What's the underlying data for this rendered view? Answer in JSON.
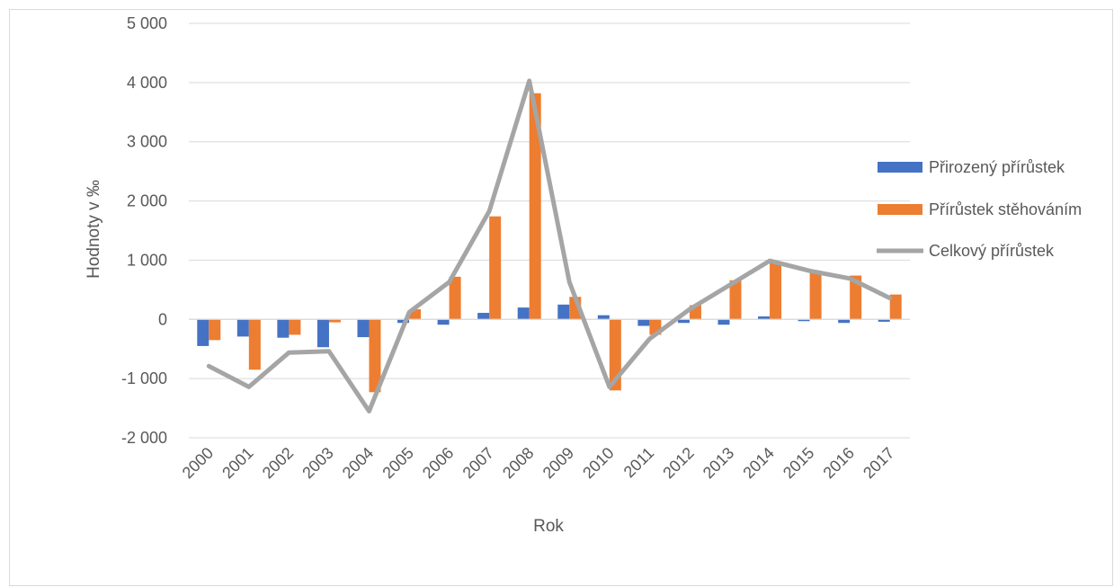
{
  "chart_data": {
    "type": "bar",
    "title": "",
    "xlabel": "Rok",
    "ylabel": "Hodnoty v ‰",
    "ylim": [
      -2000,
      5000
    ],
    "y_ticks": [
      5000,
      4000,
      3000,
      2000,
      1000,
      0,
      -1000,
      -2000
    ],
    "y_tick_labels": [
      "5 000",
      "4 000",
      "3 000",
      "2 000",
      "1 000",
      "0",
      "-1 000",
      "-2 000"
    ],
    "categories": [
      "2000",
      "2001",
      "2002",
      "2003",
      "2004",
      "2005",
      "2006",
      "2007",
      "2008",
      "2009",
      "2010",
      "2011",
      "2012",
      "2013",
      "2014",
      "2015",
      "2016",
      "2017"
    ],
    "grid": true,
    "legend_position": "right",
    "series": [
      {
        "name": "Přirozený přírůstek",
        "kind": "bar",
        "color": "#4472c4",
        "values": [
          -450,
          -290,
          -310,
          -470,
          -300,
          -60,
          -90,
          110,
          200,
          250,
          70,
          -110,
          -60,
          -90,
          50,
          -30,
          -60,
          -40
        ]
      },
      {
        "name": "Přírůstek stěhováním",
        "kind": "bar",
        "color": "#ed7d31",
        "values": [
          -350,
          -850,
          -260,
          -50,
          -1230,
          170,
          720,
          1740,
          3820,
          380,
          -1200,
          -260,
          240,
          660,
          960,
          820,
          740,
          420
        ]
      },
      {
        "name": "Celkový přírůstek",
        "kind": "line",
        "color": "#a5a5a5",
        "values": [
          -790,
          -1140,
          -560,
          -540,
          -1550,
          120,
          630,
          1830,
          4030,
          630,
          -1140,
          -330,
          170,
          580,
          990,
          820,
          690,
          360
        ]
      }
    ]
  }
}
